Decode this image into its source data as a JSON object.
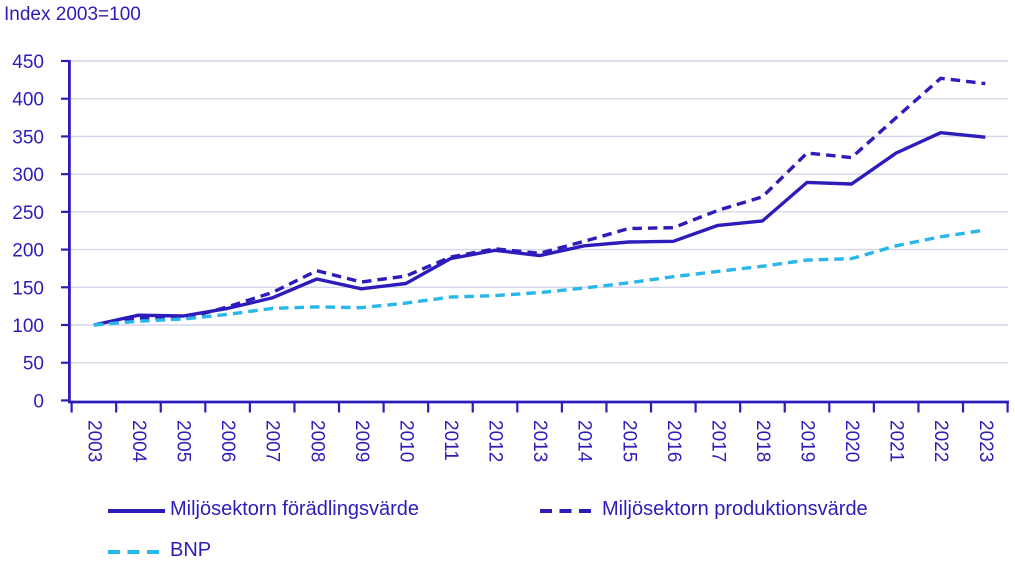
{
  "title": "Index 2003=100",
  "colors": {
    "navy": "#2d1cba",
    "cyan": "#29b6e8",
    "gridline": "#d4d6ea",
    "background": "#ffffff"
  },
  "chart_data": {
    "type": "line",
    "title": "Index 2003=100",
    "x": [
      2003,
      2004,
      2005,
      2006,
      2007,
      2008,
      2009,
      2010,
      2011,
      2012,
      2013,
      2014,
      2015,
      2016,
      2017,
      2018,
      2019,
      2020,
      2021,
      2022,
      2023
    ],
    "series": [
      {
        "name": "Miljösektorn förädlingsvärde",
        "style": "solid",
        "color": "#2d1cba",
        "values": [
          100,
          113,
          112,
          122,
          136,
          161,
          148,
          155,
          188,
          199,
          192,
          205,
          210,
          211,
          232,
          238,
          289,
          287,
          328,
          355,
          349
        ]
      },
      {
        "name": "Miljösektorn produktionsvärde",
        "style": "dashed",
        "color": "#2d1cba",
        "values": [
          100,
          109,
          108,
          124,
          143,
          172,
          157,
          165,
          190,
          201,
          195,
          211,
          228,
          229,
          252,
          270,
          328,
          322,
          375,
          427,
          420
        ]
      },
      {
        "name": "BNP",
        "style": "dashed",
        "color": "#29b6e8",
        "values": [
          100,
          105,
          108,
          114,
          122,
          124,
          123,
          129,
          137,
          139,
          143,
          149,
          156,
          164,
          171,
          178,
          186,
          188,
          205,
          217,
          226
        ]
      }
    ],
    "xlabel": "",
    "ylabel": "",
    "ylim": [
      0,
      450
    ],
    "yticks": [
      0,
      50,
      100,
      150,
      200,
      250,
      300,
      350,
      400,
      450
    ],
    "grid": true,
    "legend_position": "bottom"
  },
  "legend": {
    "row1_item1": "Miljösektorn förädlingsvärde",
    "row1_item2": "Miljösektorn produktionsvärde",
    "row2_item1": "BNP"
  }
}
